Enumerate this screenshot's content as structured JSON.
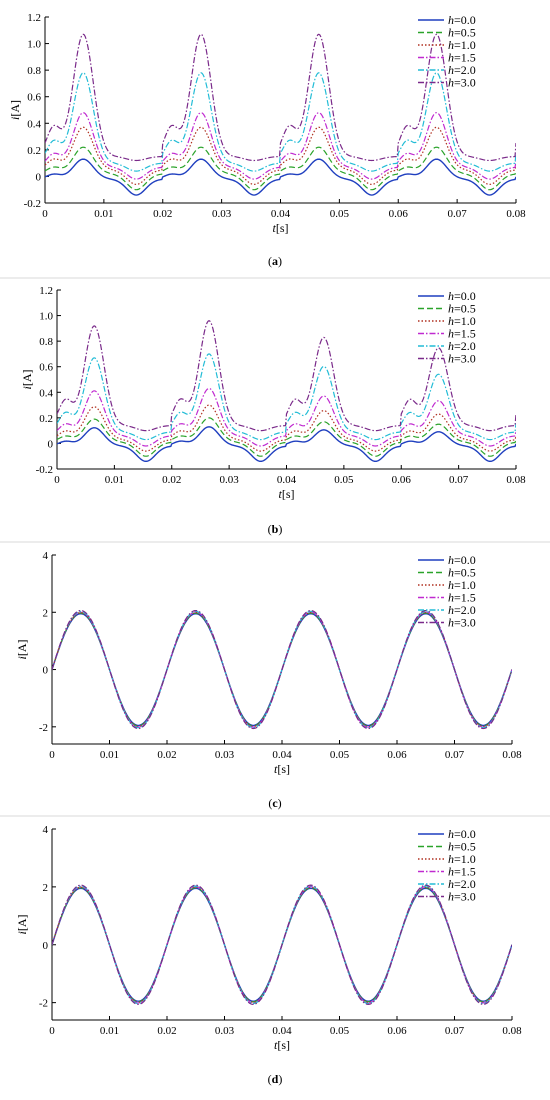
{
  "styles": {
    "series_colors": [
      "#1f3fbf",
      "#2aa32a",
      "#b03020",
      "#c02ad0",
      "#22bcd6",
      "#7a2a8a"
    ],
    "series_dash": [
      "solid",
      "dashed",
      "dotted",
      "dashdot",
      "dashdot",
      "dashdot"
    ]
  },
  "chart_data": [
    {
      "type": "line",
      "caption": "(a)",
      "xlabel": "t[s]",
      "ylabel": "i[A]",
      "xlim": [
        0,
        0.08
      ],
      "ylim": [
        -0.2,
        1.2
      ],
      "xticks": [
        "0",
        "0.01",
        "0.02",
        "0.03",
        "0.04",
        "0.05",
        "0.06",
        "0.07",
        "0.08"
      ],
      "yticks": [
        "-0.2",
        "0",
        "0.2",
        "0.4",
        "0.6",
        "0.8",
        "1.0",
        "1.2"
      ],
      "legend_position": "top-right",
      "grid": false,
      "series": [
        {
          "name": "h=0.0",
          "peak_time": 0.0065,
          "peak_value": 0.13,
          "base_value": -0.02,
          "min_value": -0.14
        },
        {
          "name": "h=0.5",
          "peak_time": 0.0065,
          "peak_value": 0.22,
          "base_value": 0.02,
          "min_value": -0.1
        },
        {
          "name": "h=1.0",
          "peak_time": 0.0065,
          "peak_value": 0.37,
          "base_value": 0.05,
          "min_value": -0.06
        },
        {
          "name": "h=1.5",
          "peak_time": 0.0065,
          "peak_value": 0.48,
          "base_value": 0.07,
          "min_value": -0.02
        },
        {
          "name": "h=2.0",
          "peak_time": 0.0065,
          "peak_value": 0.78,
          "base_value": 0.1,
          "min_value": 0.04
        },
        {
          "name": "h=3.0",
          "peak_time": 0.0065,
          "peak_value": 1.07,
          "base_value": 0.15,
          "min_value": 0.12
        }
      ]
    },
    {
      "type": "line",
      "caption": "(b)",
      "xlabel": "t[s]",
      "ylabel": "i[A]",
      "xlim": [
        0,
        0.08
      ],
      "ylim": [
        -0.2,
        1.2
      ],
      "xticks": [
        "0",
        "0.01",
        "0.02",
        "0.03",
        "0.04",
        "0.05",
        "0.06",
        "0.07",
        "0.08"
      ],
      "yticks": [
        "-0.2",
        "0",
        "0.2",
        "0.4",
        "0.6",
        "0.8",
        "1.0",
        "1.2"
      ],
      "legend_position": "top-right",
      "grid": false,
      "peak_scale": [
        0.95,
        1.0,
        0.84,
        0.74
      ],
      "series": [
        {
          "name": "h=0.0",
          "peak_time": 0.0065,
          "peak_value": 0.13,
          "base_value": -0.02,
          "min_value": -0.14
        },
        {
          "name": "h=0.5",
          "peak_time": 0.0065,
          "peak_value": 0.2,
          "base_value": 0.01,
          "min_value": -0.1
        },
        {
          "name": "h=1.0",
          "peak_time": 0.0065,
          "peak_value": 0.3,
          "base_value": 0.03,
          "min_value": -0.06
        },
        {
          "name": "h=1.5",
          "peak_time": 0.0065,
          "peak_value": 0.43,
          "base_value": 0.06,
          "min_value": -0.02
        },
        {
          "name": "h=2.0",
          "peak_time": 0.0065,
          "peak_value": 0.7,
          "base_value": 0.09,
          "min_value": 0.03
        },
        {
          "name": "h=3.0",
          "peak_time": 0.0065,
          "peak_value": 0.96,
          "base_value": 0.14,
          "min_value": 0.1
        }
      ]
    },
    {
      "type": "line",
      "caption": "(c)",
      "xlabel": "t[s]",
      "ylabel": "i[A]",
      "xlim": [
        0,
        0.08
      ],
      "ylim": [
        -2.6,
        4
      ],
      "xticks": [
        "0",
        "0.01",
        "0.02",
        "0.03",
        "0.04",
        "0.05",
        "0.06",
        "0.07",
        "0.08"
      ],
      "yticks": [
        "-2",
        "0",
        "2",
        "4"
      ],
      "legend_position": "top-right",
      "grid": false,
      "waveform": "sine",
      "frequency_hz": 50,
      "series": [
        {
          "name": "h=0.0",
          "amplitude": 1.95
        },
        {
          "name": "h=0.5",
          "amplitude": 1.97
        },
        {
          "name": "h=1.0",
          "amplitude": 1.99
        },
        {
          "name": "h=1.5",
          "amplitude": 2.01
        },
        {
          "name": "h=2.0",
          "amplitude": 2.03
        },
        {
          "name": "h=3.0",
          "amplitude": 2.06
        }
      ]
    },
    {
      "type": "line",
      "caption": "(d)",
      "xlabel": "t[s]",
      "ylabel": "i[A]",
      "xlim": [
        0,
        0.08
      ],
      "ylim": [
        -2.6,
        4
      ],
      "xticks": [
        "0",
        "0.01",
        "0.02",
        "0.03",
        "0.04",
        "0.05",
        "0.06",
        "0.07",
        "0.08"
      ],
      "yticks": [
        "-2",
        "0",
        "2",
        "4"
      ],
      "legend_position": "top-right",
      "grid": false,
      "waveform": "sine",
      "frequency_hz": 50,
      "series": [
        {
          "name": "h=0.0",
          "amplitude": 1.95
        },
        {
          "name": "h=0.5",
          "amplitude": 1.97
        },
        {
          "name": "h=1.0",
          "amplitude": 1.99
        },
        {
          "name": "h=1.5",
          "amplitude": 2.01
        },
        {
          "name": "h=2.0",
          "amplitude": 2.03
        },
        {
          "name": "h=3.0",
          "amplitude": 2.06
        }
      ]
    }
  ]
}
